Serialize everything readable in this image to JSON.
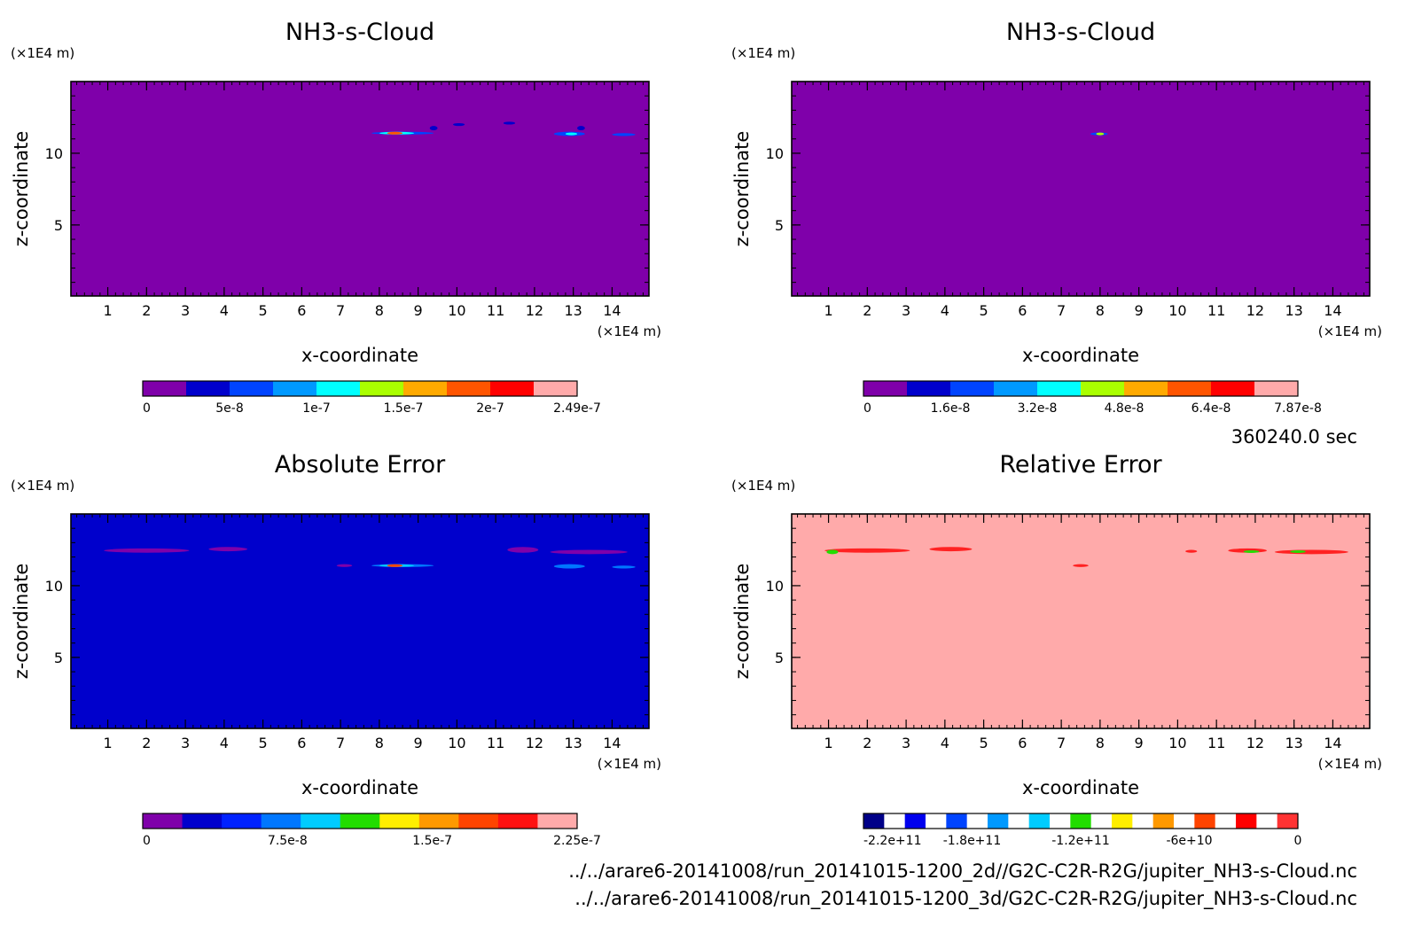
{
  "time_label": "360240.0 sec",
  "footer": {
    "file1": "../../arare6-20141008/run_20141015-1200_2d//G2C-C2R-R2G/jupiter_NH3-s-Cloud.nc",
    "file2": "../../arare6-20141008/run_20141015-1200_3d/G2C-C2R-R2G/jupiter_NH3-s-Cloud.nc"
  },
  "chart_data": [
    {
      "type": "heatmap",
      "title": "NH3-s-Cloud",
      "xlabel": "x-coordinate",
      "ylabel": "z-coordinate",
      "x_unit": "(×1E4 m)",
      "y_unit": "(×1E4 m)",
      "xlim": [
        0.05,
        14.95
      ],
      "ylim": [
        0.05,
        15.0
      ],
      "x_ticks": [
        "1",
        "2",
        "3",
        "4",
        "5",
        "6",
        "7",
        "8",
        "9",
        "10",
        "11",
        "12",
        "13",
        "14"
      ],
      "y_ticks": [
        "5",
        "10"
      ],
      "background_color": "#7f00aa",
      "colorbar": {
        "colors": [
          "#7f00aa",
          "#0000cc",
          "#0044ff",
          "#0099ff",
          "#00ffff",
          "#aaff00",
          "#ffaa00",
          "#ff5500",
          "#ff0000",
          "#ffaaaa"
        ],
        "labels": [
          "0",
          "5e-8",
          "1e-7",
          "1.5e-7",
          "2e-7",
          "2.49e-7"
        ]
      },
      "features": [
        {
          "x": [
            7.8,
            9.4
          ],
          "z": [
            11.3,
            11.5
          ],
          "color": "#0044ff"
        },
        {
          "x": [
            8.0,
            8.9
          ],
          "z": [
            11.35,
            11.45
          ],
          "color": "#00ffff"
        },
        {
          "x": [
            8.2,
            8.6
          ],
          "z": [
            11.38,
            11.42
          ],
          "color": "#ff5500"
        },
        {
          "x": [
            9.3,
            9.5
          ],
          "z": [
            11.6,
            11.9
          ],
          "color": "#0000cc"
        },
        {
          "x": [
            9.9,
            10.2
          ],
          "z": [
            11.9,
            12.1
          ],
          "color": "#0000cc"
        },
        {
          "x": [
            11.2,
            11.5
          ],
          "z": [
            12.0,
            12.2
          ],
          "color": "#0000cc"
        },
        {
          "x": [
            12.5,
            13.3
          ],
          "z": [
            11.2,
            11.5
          ],
          "color": "#0044ff"
        },
        {
          "x": [
            12.8,
            13.1
          ],
          "z": [
            11.3,
            11.4
          ],
          "color": "#00ffff"
        },
        {
          "x": [
            13.1,
            13.3
          ],
          "z": [
            11.6,
            11.9
          ],
          "color": "#0000cc"
        },
        {
          "x": [
            14.0,
            14.6
          ],
          "z": [
            11.2,
            11.4
          ],
          "color": "#0044ff"
        }
      ]
    },
    {
      "type": "heatmap",
      "title": "NH3-s-Cloud",
      "xlabel": "x-coordinate",
      "ylabel": "z-coordinate",
      "x_unit": "(×1E4 m)",
      "y_unit": "(×1E4 m)",
      "xlim": [
        0.05,
        14.95
      ],
      "ylim": [
        0.05,
        15.0
      ],
      "x_ticks": [
        "1",
        "2",
        "3",
        "4",
        "5",
        "6",
        "7",
        "8",
        "9",
        "10",
        "11",
        "12",
        "13",
        "14"
      ],
      "y_ticks": [
        "5",
        "10"
      ],
      "background_color": "#7f00aa",
      "colorbar": {
        "colors": [
          "#7f00aa",
          "#0000cc",
          "#0044ff",
          "#0099ff",
          "#00ffff",
          "#aaff00",
          "#ffaa00",
          "#ff5500",
          "#ff0000",
          "#ffaaaa"
        ],
        "labels": [
          "0",
          "1.6e-8",
          "3.2e-8",
          "4.8e-8",
          "6.4e-8",
          "7.87e-8"
        ]
      },
      "features": [
        {
          "x": [
            7.75,
            8.2
          ],
          "z": [
            11.25,
            11.45
          ],
          "color": "#0044ff"
        },
        {
          "x": [
            7.9,
            8.1
          ],
          "z": [
            11.3,
            11.4
          ],
          "color": "#aaff00"
        }
      ]
    },
    {
      "type": "heatmap",
      "title": "Absolute Error",
      "xlabel": "x-coordinate",
      "ylabel": "z-coordinate",
      "x_unit": "(×1E4 m)",
      "y_unit": "(×1E4 m)",
      "xlim": [
        0.05,
        14.95
      ],
      "ylim": [
        0.05,
        15.0
      ],
      "x_ticks": [
        "1",
        "2",
        "3",
        "4",
        "5",
        "6",
        "7",
        "8",
        "9",
        "10",
        "11",
        "12",
        "13",
        "14"
      ],
      "y_ticks": [
        "5",
        "10"
      ],
      "background_color": "#0000cc",
      "colorbar": {
        "colors": [
          "#7f00aa",
          "#0000cc",
          "#0022ff",
          "#0077ff",
          "#00ccff",
          "#22dd00",
          "#ffee00",
          "#ff9900",
          "#ff4400",
          "#ff1111",
          "#ffaaaa"
        ],
        "labels": [
          "0",
          "7.5e-8",
          "1.5e-7",
          "2.25e-7"
        ]
      },
      "features": [
        {
          "x": [
            0.9,
            3.1
          ],
          "z": [
            12.3,
            12.6
          ],
          "color": "#7f00aa"
        },
        {
          "x": [
            3.6,
            4.6
          ],
          "z": [
            12.4,
            12.7
          ],
          "color": "#7f00aa"
        },
        {
          "x": [
            7.8,
            9.4
          ],
          "z": [
            11.3,
            11.5
          ],
          "color": "#0077ff"
        },
        {
          "x": [
            8.0,
            8.9
          ],
          "z": [
            11.35,
            11.45
          ],
          "color": "#00ccff"
        },
        {
          "x": [
            8.2,
            8.6
          ],
          "z": [
            11.38,
            11.42
          ],
          "color": "#ff4400"
        },
        {
          "x": [
            6.9,
            7.3
          ],
          "z": [
            11.3,
            11.5
          ],
          "color": "#7f00aa"
        },
        {
          "x": [
            11.3,
            12.1
          ],
          "z": [
            12.3,
            12.7
          ],
          "color": "#7f00aa"
        },
        {
          "x": [
            12.4,
            14.4
          ],
          "z": [
            12.2,
            12.5
          ],
          "color": "#7f00aa"
        },
        {
          "x": [
            12.5,
            13.3
          ],
          "z": [
            11.2,
            11.5
          ],
          "color": "#0077ff"
        },
        {
          "x": [
            14.0,
            14.6
          ],
          "z": [
            11.2,
            11.4
          ],
          "color": "#0077ff"
        }
      ]
    },
    {
      "type": "heatmap",
      "title": "Relative Error",
      "xlabel": "x-coordinate",
      "ylabel": "z-coordinate",
      "x_unit": "(×1E4 m)",
      "y_unit": "(×1E4 m)",
      "xlim": [
        0.05,
        14.95
      ],
      "ylim": [
        0.05,
        15.0
      ],
      "x_ticks": [
        "1",
        "2",
        "3",
        "4",
        "5",
        "6",
        "7",
        "8",
        "9",
        "10",
        "11",
        "12",
        "13",
        "14"
      ],
      "y_ticks": [
        "5",
        "10"
      ],
      "background_color": "#ffaaaa",
      "colorbar": {
        "colors": [
          "#000088",
          "#ffffff",
          "#0000ee",
          "#ffffff",
          "#0044ff",
          "#ffffff",
          "#0099ff",
          "#ffffff",
          "#00ccff",
          "#ffffff",
          "#22dd00",
          "#ffffff",
          "#ffee00",
          "#ffffff",
          "#ff9900",
          "#ffffff",
          "#ff4400",
          "#ffffff",
          "#ff0000",
          "#ffffff",
          "#ff3333"
        ],
        "labels": [
          "-2.2e+11",
          "-1.8e+11",
          "-1.2e+11",
          "-6e+10",
          "0"
        ]
      },
      "features": [
        {
          "x": [
            0.9,
            3.1
          ],
          "z": [
            12.3,
            12.6
          ],
          "color": "#ff2222"
        },
        {
          "x": [
            0.95,
            1.25
          ],
          "z": [
            12.2,
            12.5
          ],
          "color": "#22dd00"
        },
        {
          "x": [
            3.6,
            4.7
          ],
          "z": [
            12.4,
            12.7
          ],
          "color": "#ff2222"
        },
        {
          "x": [
            7.3,
            7.7
          ],
          "z": [
            11.3,
            11.5
          ],
          "color": "#ff2222"
        },
        {
          "x": [
            10.2,
            10.5
          ],
          "z": [
            12.3,
            12.5
          ],
          "color": "#ff2222"
        },
        {
          "x": [
            11.3,
            12.3
          ],
          "z": [
            12.3,
            12.6
          ],
          "color": "#ff2222"
        },
        {
          "x": [
            11.7,
            12.1
          ],
          "z": [
            12.3,
            12.45
          ],
          "color": "#22dd00"
        },
        {
          "x": [
            12.5,
            14.4
          ],
          "z": [
            12.2,
            12.5
          ],
          "color": "#ff2222"
        },
        {
          "x": [
            12.9,
            13.3
          ],
          "z": [
            12.3,
            12.45
          ],
          "color": "#22dd00"
        }
      ]
    }
  ]
}
